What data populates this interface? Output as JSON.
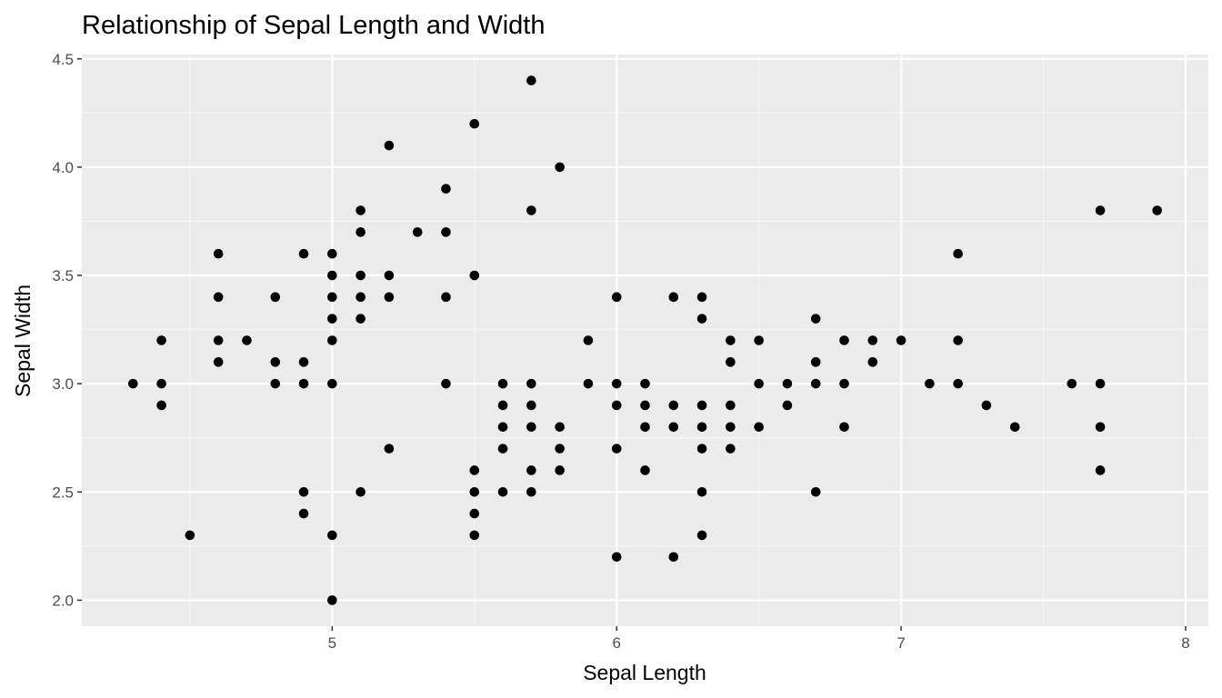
{
  "chart_data": {
    "type": "scatter",
    "title": "Relationship of Sepal Length and Width",
    "xlabel": "Sepal Length",
    "ylabel": "Sepal Width",
    "xlim": [
      4.12,
      8.08
    ],
    "ylim": [
      1.88,
      4.52
    ],
    "x_ticks": [
      5,
      6,
      7,
      8
    ],
    "y_ticks": [
      2.0,
      2.5,
      3.0,
      3.5,
      4.0,
      4.5
    ],
    "x_tick_labels": [
      "5",
      "6",
      "7",
      "8"
    ],
    "y_tick_labels": [
      "2.0",
      "2.5",
      "3.0",
      "3.5",
      "4.0",
      "4.5"
    ],
    "grid": true,
    "legend": "none",
    "colors": {
      "panel": "#ebebeb",
      "grid_major": "#ffffff",
      "grid_minor": "#f5f5f5",
      "point": "#000000",
      "tick": "#333333"
    },
    "points": [
      [
        4.3,
        3.0
      ],
      [
        4.4,
        3.2
      ],
      [
        4.4,
        3.0
      ],
      [
        4.4,
        2.9
      ],
      [
        4.5,
        2.3
      ],
      [
        4.6,
        3.6
      ],
      [
        4.6,
        3.4
      ],
      [
        4.6,
        3.2
      ],
      [
        4.6,
        3.1
      ],
      [
        4.7,
        3.2
      ],
      [
        4.8,
        3.4
      ],
      [
        4.8,
        3.1
      ],
      [
        4.8,
        3.0
      ],
      [
        4.9,
        3.6
      ],
      [
        4.9,
        3.1
      ],
      [
        4.9,
        3.0
      ],
      [
        4.9,
        2.5
      ],
      [
        4.9,
        2.4
      ],
      [
        5.0,
        3.6
      ],
      [
        5.0,
        3.5
      ],
      [
        5.0,
        3.4
      ],
      [
        5.0,
        3.3
      ],
      [
        5.0,
        3.2
      ],
      [
        5.0,
        3.0
      ],
      [
        5.0,
        2.3
      ],
      [
        5.0,
        2.0
      ],
      [
        5.1,
        3.8
      ],
      [
        5.1,
        3.7
      ],
      [
        5.1,
        3.5
      ],
      [
        5.1,
        3.4
      ],
      [
        5.1,
        3.3
      ],
      [
        5.1,
        2.5
      ],
      [
        5.2,
        4.1
      ],
      [
        5.2,
        3.5
      ],
      [
        5.2,
        3.4
      ],
      [
        5.2,
        2.7
      ],
      [
        5.3,
        3.7
      ],
      [
        5.4,
        3.9
      ],
      [
        5.4,
        3.7
      ],
      [
        5.4,
        3.4
      ],
      [
        5.4,
        3.0
      ],
      [
        5.5,
        4.2
      ],
      [
        5.5,
        3.5
      ],
      [
        5.5,
        2.6
      ],
      [
        5.5,
        2.5
      ],
      [
        5.5,
        2.4
      ],
      [
        5.5,
        2.3
      ],
      [
        5.6,
        3.0
      ],
      [
        5.6,
        2.9
      ],
      [
        5.6,
        2.8
      ],
      [
        5.6,
        2.7
      ],
      [
        5.6,
        2.5
      ],
      [
        5.7,
        4.4
      ],
      [
        5.7,
        3.8
      ],
      [
        5.7,
        3.0
      ],
      [
        5.7,
        2.9
      ],
      [
        5.7,
        2.8
      ],
      [
        5.7,
        2.6
      ],
      [
        5.7,
        2.5
      ],
      [
        5.8,
        4.0
      ],
      [
        5.8,
        2.8
      ],
      [
        5.8,
        2.7
      ],
      [
        5.8,
        2.6
      ],
      [
        5.9,
        3.2
      ],
      [
        5.9,
        3.0
      ],
      [
        6.0,
        3.4
      ],
      [
        6.0,
        3.0
      ],
      [
        6.0,
        2.9
      ],
      [
        6.0,
        2.7
      ],
      [
        6.0,
        2.2
      ],
      [
        6.1,
        3.0
      ],
      [
        6.1,
        2.9
      ],
      [
        6.1,
        2.8
      ],
      [
        6.1,
        2.6
      ],
      [
        6.2,
        3.4
      ],
      [
        6.2,
        2.9
      ],
      [
        6.2,
        2.8
      ],
      [
        6.2,
        2.2
      ],
      [
        6.3,
        3.4
      ],
      [
        6.3,
        3.3
      ],
      [
        6.3,
        2.9
      ],
      [
        6.3,
        2.8
      ],
      [
        6.3,
        2.7
      ],
      [
        6.3,
        2.5
      ],
      [
        6.3,
        2.3
      ],
      [
        6.4,
        3.2
      ],
      [
        6.4,
        3.1
      ],
      [
        6.4,
        2.9
      ],
      [
        6.4,
        2.8
      ],
      [
        6.4,
        2.7
      ],
      [
        6.5,
        3.2
      ],
      [
        6.5,
        3.0
      ],
      [
        6.5,
        2.8
      ],
      [
        6.6,
        3.0
      ],
      [
        6.6,
        2.9
      ],
      [
        6.7,
        3.3
      ],
      [
        6.7,
        3.1
      ],
      [
        6.7,
        3.0
      ],
      [
        6.7,
        2.5
      ],
      [
        6.8,
        3.2
      ],
      [
        6.8,
        3.0
      ],
      [
        6.8,
        2.8
      ],
      [
        6.9,
        3.2
      ],
      [
        6.9,
        3.1
      ],
      [
        7.0,
        3.2
      ],
      [
        7.1,
        3.0
      ],
      [
        7.2,
        3.6
      ],
      [
        7.2,
        3.2
      ],
      [
        7.2,
        3.0
      ],
      [
        7.3,
        2.9
      ],
      [
        7.4,
        2.8
      ],
      [
        7.6,
        3.0
      ],
      [
        7.7,
        3.8
      ],
      [
        7.7,
        3.0
      ],
      [
        7.7,
        2.8
      ],
      [
        7.7,
        2.6
      ],
      [
        7.9,
        3.8
      ]
    ]
  }
}
